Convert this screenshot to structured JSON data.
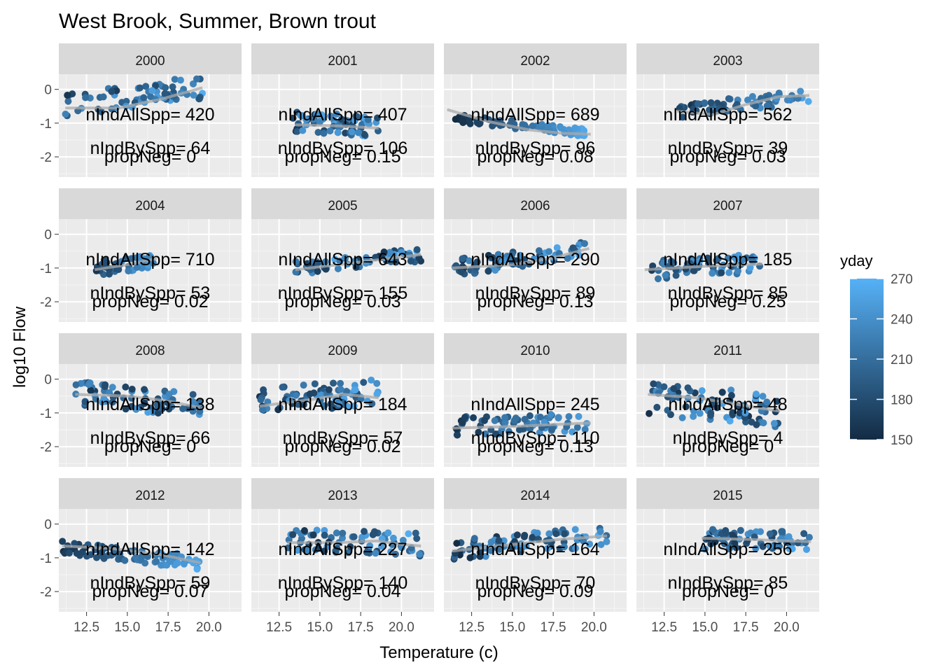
{
  "chart_data": {
    "type": "scatter",
    "title": "West Brook, Summer, Brown trout",
    "xlabel": "Temperature (c)",
    "ylabel": "log10 Flow",
    "xlim": [
      10.8,
      22.0
    ],
    "ylim": [
      -2.6,
      0.45
    ],
    "x_ticks": [
      "12.5",
      "15.0",
      "17.5",
      "20.0"
    ],
    "y_ticks": [
      "0",
      "-1",
      "-2"
    ],
    "grid": true,
    "legend": {
      "title": "yday",
      "placement": "right",
      "ticks": [
        "270",
        "240",
        "210",
        "180",
        "150"
      ],
      "range": [
        150,
        270
      ],
      "color_low": "#132B43",
      "color_high": "#56B1F7"
    },
    "smooth_color": "#a9a9a9",
    "facets": [
      {
        "year": "2000",
        "x_range": [
          11.2,
          19.6
        ],
        "y_start": -0.45,
        "y_end": 0.05,
        "y_spread": 0.35,
        "day_trend": 0.3,
        "n": 70,
        "seed": 1,
        "smooth": [
          [
            11.2,
            -0.55
          ],
          [
            14.5,
            -0.55
          ],
          [
            17.0,
            -0.3
          ],
          [
            19.6,
            0.05
          ]
        ],
        "labels": [
          "nIndAllSpp= 420",
          "nIndBySpp= 64",
          "propNeg= 0"
        ]
      },
      {
        "year": "2001",
        "x_range": [
          13.2,
          18.6
        ],
        "y_start": -0.95,
        "y_end": -1.1,
        "y_spread": 0.3,
        "day_trend": 0.2,
        "n": 70,
        "seed": 2,
        "smooth": [
          [
            13.5,
            -1.05
          ],
          [
            16.0,
            -1.08
          ],
          [
            18.6,
            -1.15
          ]
        ],
        "labels": [
          "nIndAllSpp= 407",
          "nIndBySpp= 106",
          "propNeg= 0.15"
        ]
      },
      {
        "year": "2002",
        "x_range": [
          11.5,
          19.8
        ],
        "y_start": -0.85,
        "y_end": -1.3,
        "y_spread": 0.12,
        "day_trend": 0.95,
        "n": 80,
        "seed": 3,
        "smooth": [
          [
            11.0,
            -0.6
          ],
          [
            13.5,
            -0.95
          ],
          [
            16.0,
            -1.2
          ],
          [
            18.0,
            -1.3
          ],
          [
            19.8,
            -1.33
          ]
        ],
        "labels": [
          "nIndAllSpp= 689",
          "nIndBySpp= 96",
          "propNeg= 0.08"
        ]
      },
      {
        "year": "2003",
        "x_range": [
          13.3,
          21.4
        ],
        "y_start": -0.65,
        "y_end": -0.2,
        "y_spread": 0.2,
        "day_trend": 0.6,
        "n": 65,
        "seed": 4,
        "smooth": [
          [
            13.3,
            -0.65
          ],
          [
            15.5,
            -0.75
          ],
          [
            17.5,
            -0.45
          ],
          [
            19.5,
            -0.22
          ],
          [
            21.4,
            -0.18
          ]
        ],
        "labels": [
          "nIndAllSpp= 562",
          "nIndBySpp= 39",
          "propNeg= 0.03"
        ]
      },
      {
        "year": "2004",
        "x_range": [
          13.0,
          16.8
        ],
        "y_start": -1.05,
        "y_end": -0.75,
        "y_spread": 0.25,
        "day_trend": 0.6,
        "n": 50,
        "seed": 5,
        "smooth": [
          [
            13.0,
            -1.05
          ],
          [
            15.0,
            -0.9
          ],
          [
            16.8,
            -0.72
          ]
        ],
        "labels": [
          "nIndAllSpp= 710",
          "nIndBySpp= 53",
          "propNeg= 0.02"
        ]
      },
      {
        "year": "2005",
        "x_range": [
          13.5,
          21.2
        ],
        "y_start": -1.0,
        "y_end": -0.6,
        "y_spread": 0.2,
        "day_trend": 0.1,
        "n": 70,
        "seed": 6,
        "smooth": [
          [
            13.5,
            -1.05
          ],
          [
            17.0,
            -0.85
          ],
          [
            21.2,
            -0.6
          ]
        ],
        "labels": [
          "nIndAllSpp= 643",
          "nIndBySpp= 155",
          "propNeg= 0.03"
        ]
      },
      {
        "year": "2006",
        "x_range": [
          11.3,
          19.7
        ],
        "y_start": -1.0,
        "y_end": -0.45,
        "y_spread": 0.25,
        "day_trend": 0.3,
        "n": 75,
        "seed": 7,
        "smooth": [
          [
            11.3,
            -1.0
          ],
          [
            15.0,
            -0.9
          ],
          [
            17.5,
            -0.7
          ],
          [
            19.7,
            -0.42
          ]
        ],
        "labels": [
          "nIndAllSpp= 290",
          "nIndBySpp= 89",
          "propNeg= 0.13"
        ]
      },
      {
        "year": "2007",
        "x_range": [
          11.3,
          18.5
        ],
        "y_start": -1.05,
        "y_end": -0.85,
        "y_spread": 0.3,
        "day_trend": 0.3,
        "n": 70,
        "seed": 8,
        "smooth": [
          [
            11.3,
            -1.05
          ],
          [
            15.0,
            -0.95
          ],
          [
            18.5,
            -0.88
          ]
        ],
        "labels": [
          "nIndAllSpp= 185",
          "nIndBySpp= 85",
          "propNeg= 0.25"
        ]
      },
      {
        "year": "2008",
        "x_range": [
          11.8,
          19.5
        ],
        "y_start": -0.4,
        "y_end": -0.8,
        "y_spread": 0.35,
        "day_trend": 0.2,
        "n": 75,
        "seed": 9,
        "smooth": [
          [
            11.8,
            -0.45
          ],
          [
            15.0,
            -0.5
          ],
          [
            17.5,
            -0.65
          ],
          [
            19.5,
            -0.85
          ]
        ],
        "labels": [
          "nIndAllSpp= 138",
          "nIndBySpp= 66",
          "propNeg= 0"
        ]
      },
      {
        "year": "2009",
        "x_range": [
          11.3,
          18.6
        ],
        "y_start": -0.7,
        "y_end": -0.35,
        "y_spread": 0.4,
        "day_trend": 0.3,
        "n": 80,
        "seed": 10,
        "smooth": [
          [
            11.3,
            -0.8
          ],
          [
            14.5,
            -0.6
          ],
          [
            16.5,
            -0.45
          ],
          [
            18.6,
            -0.55
          ]
        ],
        "labels": [
          "nIndAllSpp= 184",
          "nIndBySpp= 57",
          "propNeg= 0.02"
        ]
      },
      {
        "year": "2010",
        "x_range": [
          11.3,
          19.8
        ],
        "y_start": -1.4,
        "y_end": -1.3,
        "y_spread": 0.3,
        "day_trend": 0.55,
        "n": 70,
        "seed": 11,
        "smooth": [
          [
            11.3,
            -1.45
          ],
          [
            15.0,
            -1.4
          ],
          [
            19.8,
            -1.3
          ]
        ],
        "labels": [
          "nIndAllSpp= 245",
          "nIndBySpp= 110",
          "propNeg= 0.13"
        ]
      },
      {
        "year": "2011",
        "x_range": [
          11.5,
          19.6
        ],
        "y_start": -0.6,
        "y_end": -0.95,
        "y_spread": 0.5,
        "day_trend": 0.1,
        "n": 85,
        "seed": 12,
        "smooth": [
          [
            11.5,
            -0.45
          ],
          [
            14.5,
            -0.55
          ],
          [
            17.0,
            -0.75
          ],
          [
            19.6,
            -0.95
          ]
        ],
        "labels": [
          "nIndAllSpp= 48",
          "nIndBySpp= 4",
          "propNeg= 0"
        ]
      },
      {
        "year": "2012",
        "x_range": [
          11.0,
          19.5
        ],
        "y_start": -0.7,
        "y_end": -1.15,
        "y_spread": 0.2,
        "day_trend": 0.8,
        "n": 80,
        "seed": 13,
        "smooth": [
          [
            11.0,
            -0.65
          ],
          [
            14.0,
            -0.72
          ],
          [
            17.0,
            -0.9
          ],
          [
            19.5,
            -1.15
          ]
        ],
        "labels": [
          "nIndAllSpp= 142",
          "nIndBySpp= 59",
          "propNeg= 0.07"
        ]
      },
      {
        "year": "2013",
        "x_range": [
          13.0,
          21.2
        ],
        "y_start": -0.5,
        "y_end": -0.6,
        "y_spread": 0.35,
        "day_trend": 0.2,
        "n": 75,
        "seed": 14,
        "smooth": [
          [
            13.0,
            -0.55
          ],
          [
            16.0,
            -0.55
          ],
          [
            18.5,
            -0.5
          ],
          [
            20.0,
            -0.6
          ],
          [
            21.2,
            -0.65
          ]
        ],
        "labels": [
          "nIndAllSpp= 227",
          "nIndBySpp= 140",
          "propNeg= 0.04"
        ]
      },
      {
        "year": "2014",
        "x_range": [
          11.3,
          20.8
        ],
        "y_start": -0.75,
        "y_end": -0.35,
        "y_spread": 0.3,
        "day_trend": 0.3,
        "n": 85,
        "seed": 15,
        "smooth": [
          [
            11.3,
            -0.8
          ],
          [
            15.0,
            -0.6
          ],
          [
            18.0,
            -0.45
          ],
          [
            20.8,
            -0.35
          ]
        ],
        "labels": [
          "nIndAllSpp= 164",
          "nIndBySpp= 70",
          "propNeg= 0.09"
        ]
      },
      {
        "year": "2015",
        "x_range": [
          14.8,
          21.5
        ],
        "y_start": -0.45,
        "y_end": -0.5,
        "y_spread": 0.3,
        "day_trend": 0.3,
        "n": 70,
        "seed": 16,
        "smooth": [
          [
            14.8,
            -0.42
          ],
          [
            17.5,
            -0.45
          ],
          [
            20.0,
            -0.5
          ],
          [
            21.5,
            -0.52
          ]
        ],
        "labels": [
          "nIndAllSpp= 256",
          "nIndBySpp= 85",
          "propNeg= 0"
        ]
      }
    ]
  }
}
